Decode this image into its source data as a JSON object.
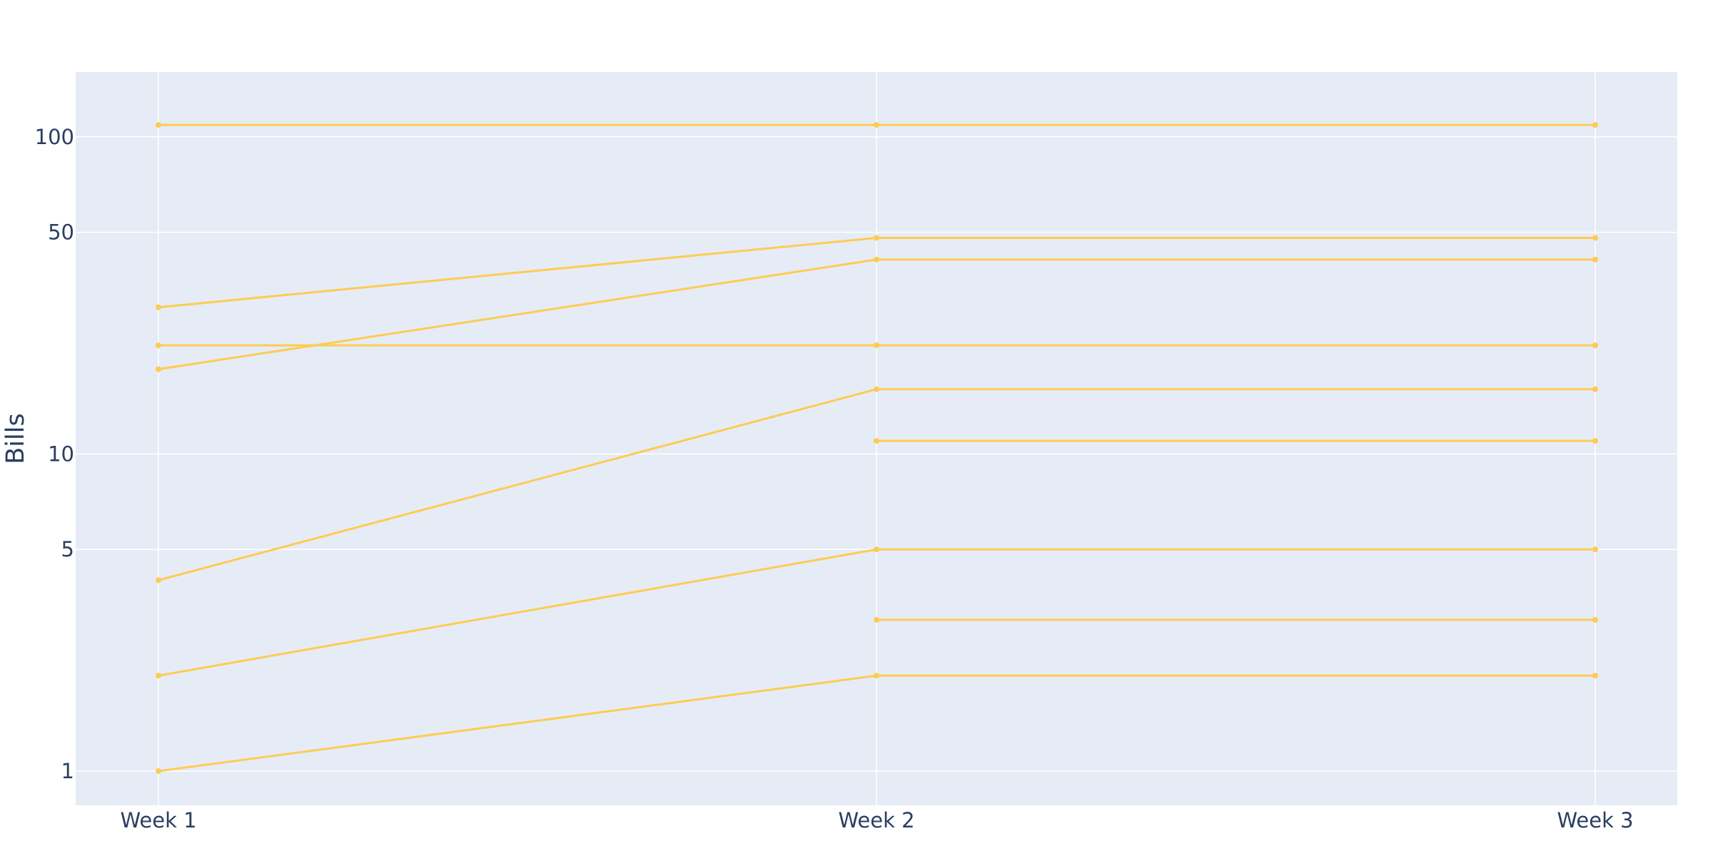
{
  "chart_data": {
    "type": "line",
    "title": "",
    "xlabel": "",
    "ylabel": "Bills",
    "categories": [
      "Week 1",
      "Week 2",
      "Week 3"
    ],
    "y_scale": "log",
    "ylim": [
      0.78,
      160
    ],
    "y_ticks": [
      1,
      5,
      10,
      50,
      100
    ],
    "grid": true,
    "legend": "none",
    "colors": {
      "line": "#fecb52",
      "plot_bg": "#e5ecf6",
      "grid": "#ffffff",
      "text": "#2a3f5f"
    },
    "series": [
      {
        "values": [
          109,
          109,
          109
        ]
      },
      {
        "values": [
          29,
          48,
          48
        ]
      },
      {
        "values": [
          18.5,
          41,
          41
        ]
      },
      {
        "values": [
          22,
          22,
          22
        ]
      },
      {
        "values": [
          4,
          16,
          16
        ]
      },
      {
        "values": [
          null,
          11,
          11
        ]
      },
      {
        "values": [
          2,
          5,
          5
        ]
      },
      {
        "values": [
          null,
          3,
          3
        ]
      },
      {
        "values": [
          1,
          2,
          2
        ]
      }
    ]
  }
}
